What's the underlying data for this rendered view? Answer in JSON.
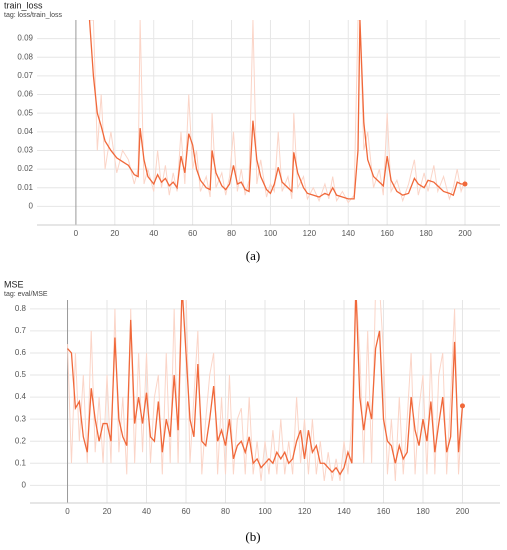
{
  "chart_data": [
    {
      "type": "line",
      "title": "train_loss",
      "subtitle": "tag: loss/train_loss",
      "caption": "(a)",
      "x": [
        7,
        9,
        11,
        13,
        15,
        18,
        21,
        24,
        27,
        30,
        32,
        33,
        35,
        37,
        40,
        42,
        44,
        46,
        48,
        50,
        52,
        54,
        56,
        58,
        60,
        62,
        64,
        67,
        69,
        70,
        72,
        75,
        77,
        79,
        81,
        83,
        85,
        87,
        89,
        91,
        93,
        95,
        98,
        100,
        102,
        104,
        106,
        109,
        111,
        112,
        114,
        117,
        119,
        122,
        125,
        128,
        130,
        132,
        134,
        137,
        140,
        143,
        145,
        146,
        148,
        150,
        153,
        156,
        158,
        160,
        162,
        165,
        168,
        171,
        174,
        176,
        179,
        181,
        184,
        186,
        189,
        192,
        194,
        196,
        198,
        200
      ],
      "series": [
        {
          "color": "#fbd5c8",
          "values": [
            0.1,
            0.1,
            0.03,
            0.06,
            0.02,
            0.04,
            0.018,
            0.03,
            0.025,
            0.012,
            0.02,
            0.1,
            0.012,
            0.02,
            0.008,
            0.03,
            0.01,
            0.022,
            0.006,
            0.018,
            0.008,
            0.04,
            0.012,
            0.06,
            0.02,
            0.03,
            0.008,
            0.016,
            0.005,
            0.05,
            0.01,
            0.018,
            0.006,
            0.016,
            0.04,
            0.008,
            0.02,
            0.006,
            0.014,
            0.1,
            0.012,
            0.025,
            0.005,
            0.012,
            0.008,
            0.04,
            0.008,
            0.016,
            0.004,
            0.05,
            0.01,
            0.016,
            0.004,
            0.01,
            0.003,
            0.012,
            0.004,
            0.016,
            0.003,
            0.008,
            0.002,
            0.006,
            0.1,
            0.1,
            0.03,
            0.04,
            0.01,
            0.02,
            0.006,
            0.05,
            0.008,
            0.014,
            0.003,
            0.012,
            0.025,
            0.006,
            0.018,
            0.008,
            0.022,
            0.008,
            0.016,
            0.004,
            0.01,
            0.02,
            0.008,
            0.014
          ]
        },
        {
          "color": "#f0683a",
          "values": [
            0.1,
            0.07,
            0.05,
            0.043,
            0.035,
            0.03,
            0.026,
            0.024,
            0.022,
            0.017,
            0.016,
            0.042,
            0.025,
            0.016,
            0.012,
            0.017,
            0.013,
            0.015,
            0.011,
            0.013,
            0.01,
            0.027,
            0.018,
            0.039,
            0.033,
            0.02,
            0.014,
            0.01,
            0.009,
            0.03,
            0.018,
            0.011,
            0.009,
            0.012,
            0.022,
            0.012,
            0.013,
            0.009,
            0.008,
            0.046,
            0.025,
            0.016,
            0.009,
            0.007,
            0.012,
            0.021,
            0.013,
            0.01,
            0.008,
            0.029,
            0.018,
            0.01,
            0.007,
            0.006,
            0.005,
            0.007,
            0.006,
            0.01,
            0.006,
            0.005,
            0.004,
            0.004,
            0.03,
            0.1,
            0.045,
            0.025,
            0.016,
            0.013,
            0.011,
            0.027,
            0.014,
            0.008,
            0.006,
            0.007,
            0.015,
            0.012,
            0.01,
            0.014,
            0.013,
            0.011,
            0.008,
            0.007,
            0.006,
            0.013,
            0.012,
            0.012
          ]
        }
      ],
      "xlim": [
        -20,
        218
      ],
      "xticks": [
        0,
        20,
        40,
        60,
        80,
        100,
        120,
        140,
        160,
        180,
        200
      ],
      "ylim": [
        -0.01,
        0.1
      ],
      "yticks": [
        0,
        0.01,
        0.02,
        0.03,
        0.04,
        0.05,
        0.06,
        0.07,
        0.08,
        0.09
      ],
      "grid": true
    },
    {
      "type": "line",
      "title": "MSE",
      "subtitle": "tag: eval/MSE",
      "caption": "(b)",
      "x": [
        0,
        2,
        4,
        6,
        8,
        10,
        12,
        14,
        16,
        18,
        20,
        22,
        24,
        26,
        28,
        30,
        32,
        34,
        36,
        38,
        40,
        42,
        44,
        46,
        48,
        50,
        52,
        54,
        56,
        58,
        60,
        62,
        64,
        66,
        68,
        70,
        72,
        74,
        76,
        78,
        80,
        82,
        84,
        86,
        88,
        90,
        92,
        94,
        96,
        98,
        100,
        102,
        104,
        106,
        108,
        110,
        112,
        114,
        116,
        118,
        120,
        122,
        124,
        126,
        128,
        130,
        132,
        134,
        136,
        138,
        140,
        142,
        144,
        146,
        148,
        150,
        152,
        154,
        156,
        158,
        160,
        162,
        164,
        166,
        168,
        170,
        172,
        174,
        176,
        178,
        180,
        182,
        184,
        186,
        188,
        190,
        192,
        194,
        196,
        198,
        200
      ],
      "series": [
        {
          "color": "#fbd5c8",
          "values": [
            0.64,
            0.1,
            0.6,
            0.2,
            0.5,
            0.1,
            0.7,
            0.15,
            0.4,
            0.1,
            0.5,
            0.1,
            0.8,
            0.15,
            0.4,
            0.05,
            0.8,
            0.1,
            0.6,
            0.15,
            0.6,
            0.1,
            0.4,
            0.5,
            0.05,
            0.6,
            0.1,
            0.8,
            0.1,
            0.9,
            0.9,
            0.1,
            0.4,
            0.7,
            0.05,
            0.3,
            0.5,
            0.6,
            0.05,
            0.4,
            0.05,
            0.5,
            0.05,
            0.3,
            0.35,
            0.05,
            0.4,
            0.05,
            0.2,
            0.02,
            0.2,
            0.05,
            0.25,
            0.05,
            0.3,
            0.05,
            0.2,
            0.05,
            0.4,
            0.1,
            0.3,
            0.05,
            0.3,
            0.05,
            0.2,
            0.02,
            0.15,
            0.02,
            0.12,
            0.02,
            0.2,
            0.05,
            0.3,
            0.9,
            0.6,
            0.1,
            0.7,
            0.1,
            0.9,
            0.9,
            0.6,
            0.05,
            0.3,
            0.02,
            0.4,
            0.05,
            0.3,
            0.6,
            0.05,
            0.35,
            0.5,
            0.05,
            0.6,
            0.05,
            0.5,
            0.6,
            0.05,
            0.4,
            0.8,
            0.05,
            0.36
          ]
        },
        {
          "color": "#f0683a",
          "values": [
            0.62,
            0.6,
            0.35,
            0.38,
            0.22,
            0.15,
            0.44,
            0.3,
            0.2,
            0.28,
            0.28,
            0.2,
            0.67,
            0.3,
            0.22,
            0.18,
            0.75,
            0.28,
            0.4,
            0.28,
            0.42,
            0.22,
            0.2,
            0.38,
            0.15,
            0.3,
            0.22,
            0.5,
            0.25,
            0.9,
            0.6,
            0.3,
            0.22,
            0.55,
            0.2,
            0.18,
            0.3,
            0.45,
            0.2,
            0.25,
            0.18,
            0.3,
            0.12,
            0.18,
            0.2,
            0.15,
            0.22,
            0.1,
            0.12,
            0.08,
            0.1,
            0.12,
            0.1,
            0.15,
            0.12,
            0.15,
            0.1,
            0.12,
            0.2,
            0.25,
            0.12,
            0.25,
            0.15,
            0.18,
            0.1,
            0.1,
            0.08,
            0.06,
            0.08,
            0.05,
            0.08,
            0.15,
            0.1,
            0.9,
            0.4,
            0.25,
            0.38,
            0.3,
            0.62,
            0.7,
            0.3,
            0.2,
            0.18,
            0.1,
            0.18,
            0.12,
            0.15,
            0.4,
            0.25,
            0.18,
            0.3,
            0.2,
            0.38,
            0.15,
            0.28,
            0.4,
            0.15,
            0.22,
            0.65,
            0.15,
            0.36
          ]
        }
      ],
      "xlim": [
        -19,
        219
      ],
      "xticks": [
        0,
        20,
        40,
        60,
        80,
        100,
        120,
        140,
        160,
        180,
        200
      ],
      "ylim": [
        -0.08,
        0.84
      ],
      "yticks": [
        0,
        0.1,
        0.2,
        0.3,
        0.4,
        0.5,
        0.6,
        0.7,
        0.8
      ],
      "grid": true
    }
  ]
}
